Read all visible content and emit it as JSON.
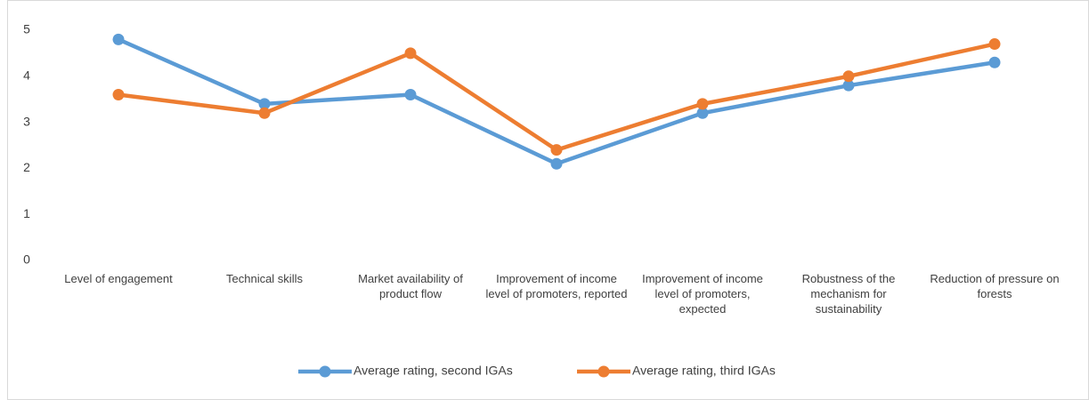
{
  "chart_data": {
    "type": "line",
    "categories": [
      "Level of engagement",
      "Technical skills",
      "Market availability of product flow",
      "Improvement of income level of promoters, reported",
      "Improvement of income level of promoters, expected",
      "Robustness of the mechanism for sustainability",
      "Reduction of pressure on forests"
    ],
    "series": [
      {
        "name": "Average rating, second IGAs",
        "color": "#5b9bd5",
        "values": [
          4.8,
          3.4,
          3.6,
          2.1,
          3.2,
          3.8,
          4.3
        ]
      },
      {
        "name": "Average rating, third IGAs",
        "color": "#ed7d31",
        "values": [
          3.6,
          3.2,
          4.5,
          2.4,
          3.4,
          4.0,
          4.7
        ]
      }
    ],
    "ylim": [
      0,
      5
    ],
    "yticks": [
      0,
      1,
      2,
      3,
      4,
      5
    ],
    "grid": false,
    "legend": "bottom"
  }
}
